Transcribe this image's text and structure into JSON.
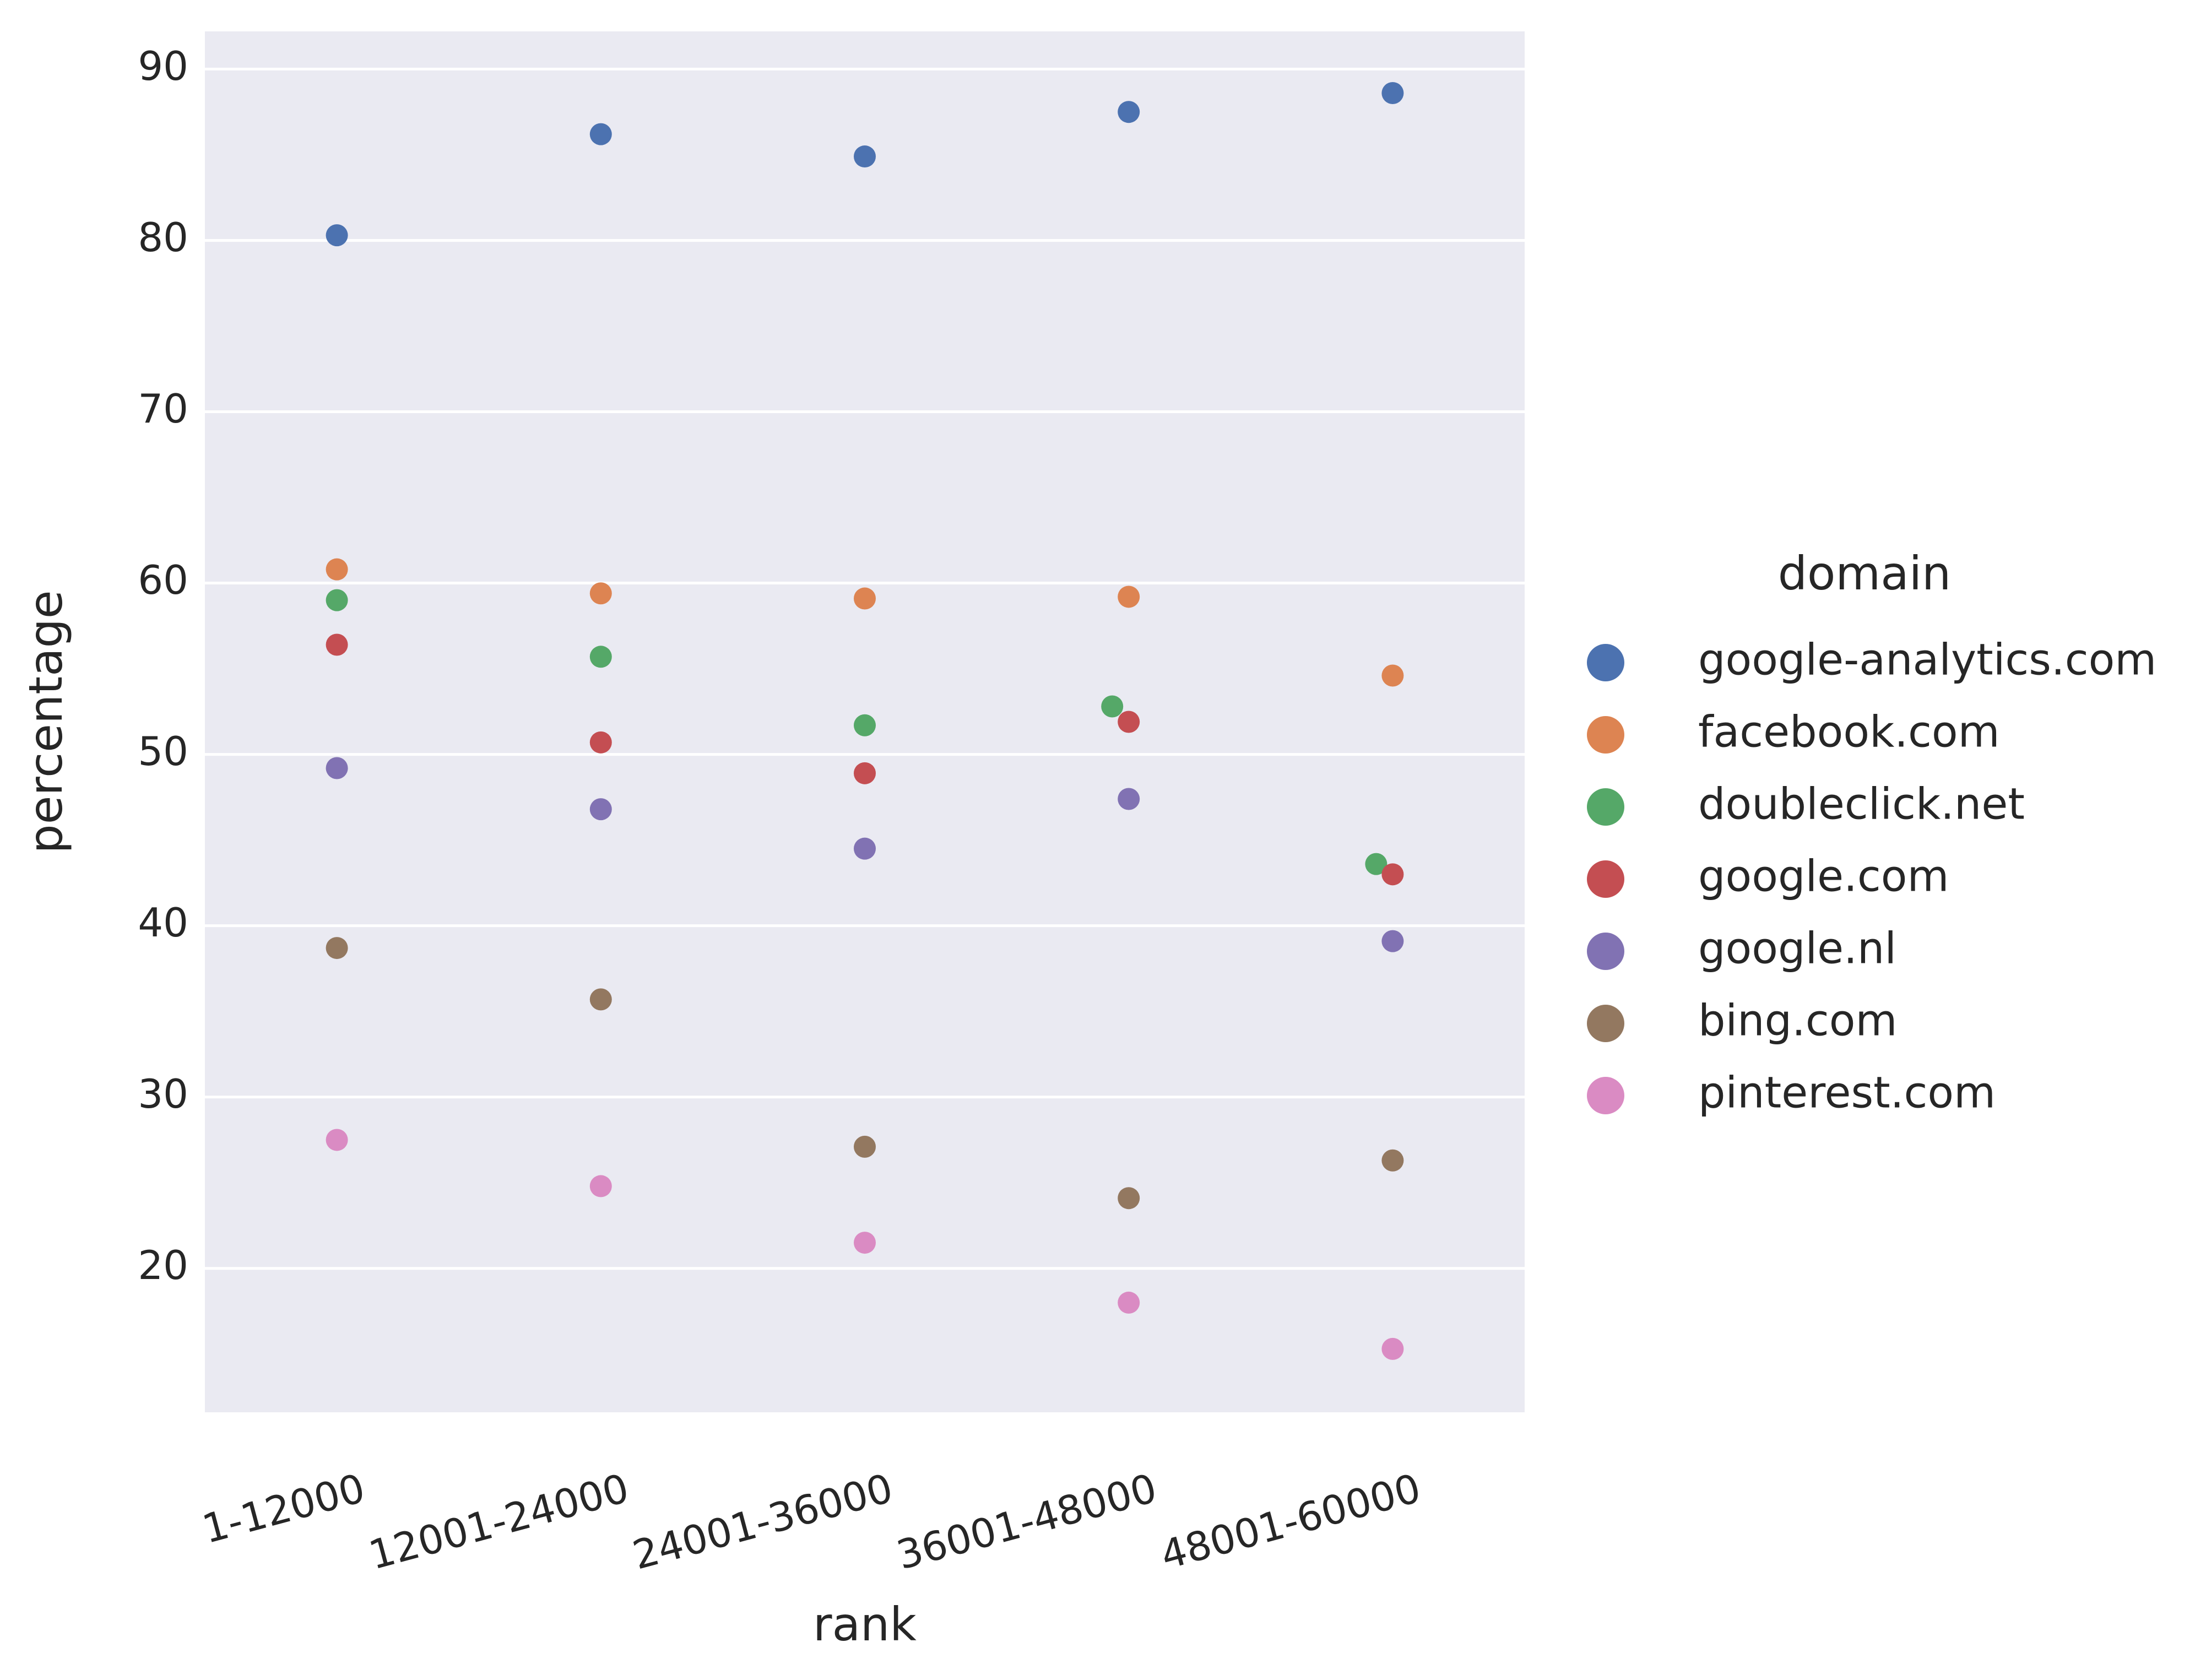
{
  "chart_data": {
    "type": "scatter",
    "subtype": "categorical strip plot",
    "xlabel": "rank",
    "ylabel": "percentage",
    "categories": [
      "1-12000",
      "12001-24000",
      "24001-36000",
      "36001-48000",
      "48001-60000"
    ],
    "ylim": [
      11.6,
      92.2
    ],
    "yticks": [
      20,
      30,
      40,
      50,
      60,
      70,
      80,
      90
    ],
    "grid": true,
    "legend": {
      "title": "domain",
      "placement": "right"
    },
    "series": [
      {
        "name": "google-analytics.com",
        "color": "#4c72b0",
        "values": [
          80.3,
          86.2,
          84.9,
          87.5,
          88.6
        ]
      },
      {
        "name": "facebook.com",
        "color": "#dd8452",
        "values": [
          60.8,
          59.4,
          59.1,
          59.2,
          54.6
        ]
      },
      {
        "name": "doubleclick.net",
        "color": "#55a868",
        "values": [
          59.0,
          55.7,
          51.7,
          52.8,
          43.6
        ]
      },
      {
        "name": "google.com",
        "color": "#c44e52",
        "values": [
          56.4,
          50.7,
          48.9,
          51.9,
          43.0
        ]
      },
      {
        "name": "google.nl",
        "color": "#8172b3",
        "values": [
          49.2,
          46.8,
          44.5,
          47.4,
          39.1
        ]
      },
      {
        "name": "bing.com",
        "color": "#937860",
        "values": [
          38.7,
          35.7,
          27.1,
          24.1,
          26.3
        ]
      },
      {
        "name": "pinterest.com",
        "color": "#da8bc3",
        "values": [
          27.5,
          24.8,
          21.5,
          18.0,
          15.3
        ]
      }
    ],
    "background_color": "#eaeaf2",
    "grid_color": "#ffffff"
  }
}
